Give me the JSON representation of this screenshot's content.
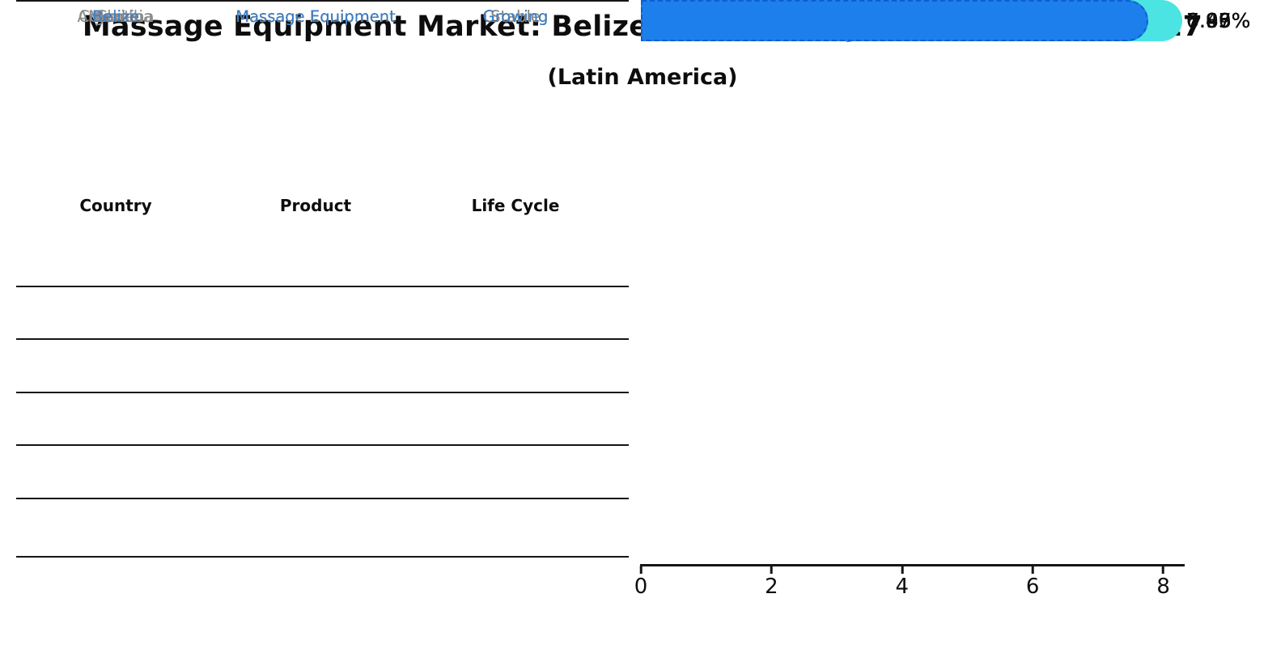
{
  "title": "Massage Equipment Market: Belize vs Top 5 Major Economies in 2027",
  "subtitle": "(Latin America)",
  "table": {
    "headers": [
      "Country",
      "Product",
      "Life Cycle"
    ],
    "rows": [
      {
        "country": "Brazil",
        "product": "Massage Equipment",
        "life_cycle": "Stable",
        "highlight": false
      },
      {
        "country": "Mexico",
        "product": "Massage Equipment",
        "life_cycle": "Growing",
        "highlight": false
      },
      {
        "country": "Argentina",
        "product": "Massage Equipment",
        "life_cycle": "Stable",
        "highlight": false
      },
      {
        "country": "Colombia",
        "product": "Massage Equipment",
        "life_cycle": "Growing",
        "highlight": false
      },
      {
        "country": "Chile",
        "product": "Massage Equipment",
        "life_cycle": "Growing",
        "highlight": true
      }
    ],
    "highlight_row": {
      "country": "Belize",
      "product": "Massage Equipment",
      "life_cycle": "Growing"
    }
  },
  "chart_data": {
    "type": "bar",
    "orientation": "horizontal",
    "title": "Massage Equipment Market: Belize vs Top 5 Major Economies in 2027",
    "subtitle": "(Latin America)",
    "categories": [
      "Brazil",
      "Mexico",
      "Argentina",
      "Colombia",
      "Chile",
      "Belize"
    ],
    "values": [
      0.05,
      7.99,
      0.03,
      7.83,
      6.96,
      7.47
    ],
    "value_labels": [
      "0.05%",
      "7.99%",
      "0.03%",
      "7.83%",
      "6.96%",
      "7.47%"
    ],
    "x_tick_labels": [
      "0",
      "2",
      "4",
      "6",
      "8"
    ],
    "x_tick_values": [
      0,
      2,
      4,
      6,
      8
    ],
    "xlim": [
      0,
      8.33
    ],
    "grid": false,
    "legend": false,
    "bar_color": "#4be4e2",
    "highlight_color": "#1d7fec",
    "highlight_border_color": "#0e5ecf",
    "highlight_index": 5,
    "text_color": "#0d0d0d",
    "muted_text_color": "#8a8a8a",
    "highlight_text_color": "#3b7ec8"
  }
}
